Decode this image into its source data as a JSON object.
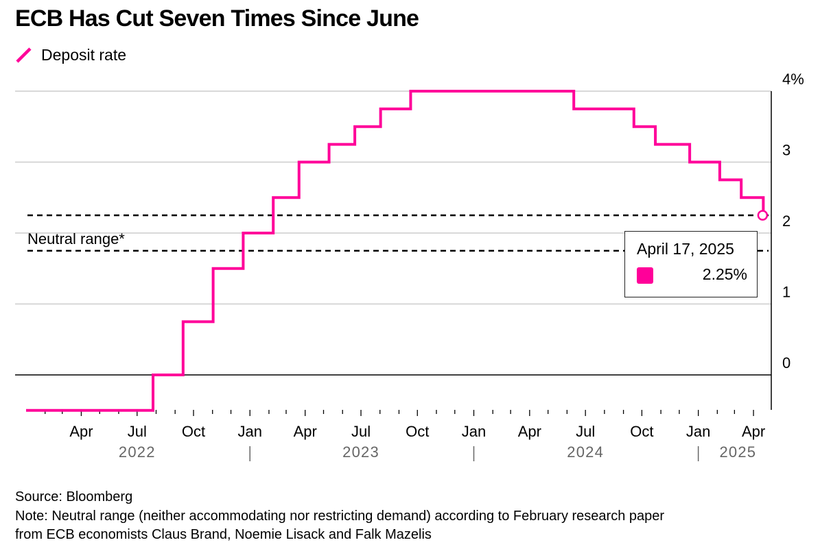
{
  "title": "ECB Has Cut Seven Times Since June",
  "colors": {
    "accent": "#ff0099",
    "grid": "#cccccc",
    "axis": "#000000",
    "year_label": "#666666"
  },
  "legend": {
    "label": "Deposit rate"
  },
  "tooltip": {
    "date": "April 17, 2025",
    "value": "2.25%"
  },
  "footer": {
    "source": "Source: Bloomberg",
    "note_line1": "Note: Neutral range (neither accommodating nor restricting demand) according to February research paper",
    "note_line2": "from ECB economists Claus Brand, Noemie Lisack and Falk Mazelis"
  },
  "chart_data": {
    "type": "line",
    "step": true,
    "series": [
      {
        "name": "Deposit rate",
        "points": [
          [
            "2022-01-01",
            -0.5
          ],
          [
            "2022-07-27",
            0.0
          ],
          [
            "2022-09-14",
            0.75
          ],
          [
            "2022-11-02",
            1.5
          ],
          [
            "2022-12-21",
            2.0
          ],
          [
            "2023-02-08",
            2.5
          ],
          [
            "2023-03-22",
            3.0
          ],
          [
            "2023-05-10",
            3.25
          ],
          [
            "2023-06-21",
            3.5
          ],
          [
            "2023-08-02",
            3.75
          ],
          [
            "2023-09-20",
            4.0
          ],
          [
            "2024-06-12",
            3.75
          ],
          [
            "2024-09-18",
            3.5
          ],
          [
            "2024-10-23",
            3.25
          ],
          [
            "2024-12-18",
            3.0
          ],
          [
            "2025-02-05",
            2.75
          ],
          [
            "2025-03-12",
            2.5
          ],
          [
            "2025-04-17",
            2.25
          ]
        ]
      }
    ],
    "reference_lines": [
      {
        "label": "Neutral range*",
        "y": 2.25
      },
      {
        "label": "",
        "y": 1.75
      }
    ],
    "highlight_point": {
      "date": "2025-04-17",
      "value": 2.25
    },
    "y_ticks": [
      {
        "value": 4,
        "label": "4%"
      },
      {
        "value": 3,
        "label": "3"
      },
      {
        "value": 2,
        "label": "2"
      },
      {
        "value": 1,
        "label": "1"
      },
      {
        "value": 0,
        "label": "0"
      }
    ],
    "ylim": [
      -0.5,
      4.0
    ],
    "xlim": [
      "2022-01-01",
      "2025-04-30"
    ],
    "x_tick_labels": [
      {
        "date": "2022-04-01",
        "label": "Apr"
      },
      {
        "date": "2022-07-01",
        "label": "Jul"
      },
      {
        "date": "2022-10-01",
        "label": "Oct"
      },
      {
        "date": "2023-01-01",
        "label": "Jan"
      },
      {
        "date": "2023-04-01",
        "label": "Apr"
      },
      {
        "date": "2023-07-01",
        "label": "Jul"
      },
      {
        "date": "2023-10-01",
        "label": "Oct"
      },
      {
        "date": "2024-01-01",
        "label": "Jan"
      },
      {
        "date": "2024-04-01",
        "label": "Apr"
      },
      {
        "date": "2024-07-01",
        "label": "Jul"
      },
      {
        "date": "2024-10-01",
        "label": "Oct"
      },
      {
        "date": "2025-01-01",
        "label": "Jan"
      },
      {
        "date": "2025-04-01",
        "label": "Apr"
      }
    ],
    "year_labels": [
      {
        "date": "2022-07-01",
        "label": "2022"
      },
      {
        "date": "2023-07-01",
        "label": "2023"
      },
      {
        "date": "2024-07-01",
        "label": "2024"
      },
      {
        "date": "2025-03-01",
        "label": "2025"
      }
    ],
    "year_separators": [
      "2023-01-01",
      "2024-01-01",
      "2025-01-01"
    ],
    "grid": true,
    "legend_position": "top-left"
  }
}
